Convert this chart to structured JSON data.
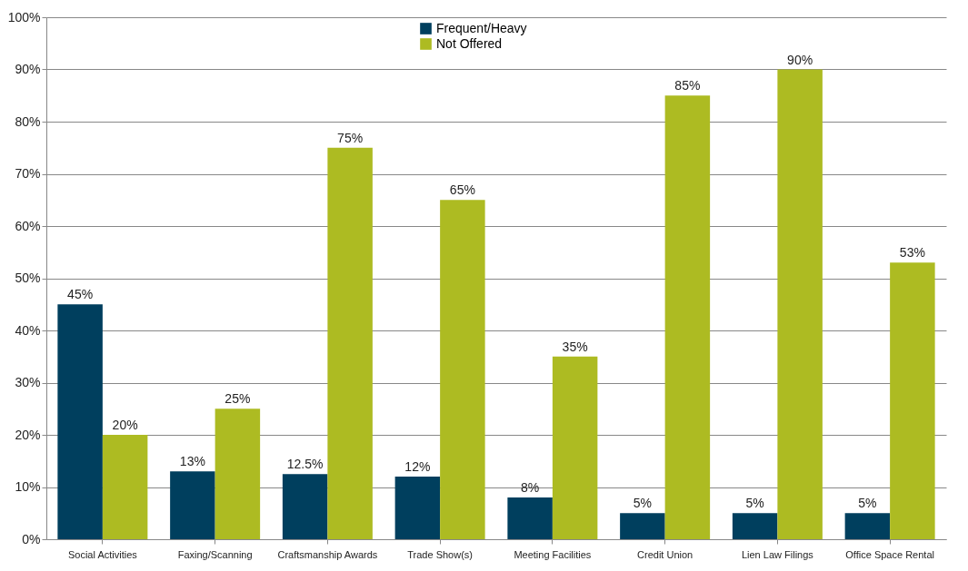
{
  "chart_data": {
    "type": "bar",
    "categories": [
      "Social Activities",
      "Faxing/Scanning",
      "Craftsmanship Awards",
      "Trade Show(s)",
      "Meeting Facilities",
      "Credit Union",
      "Lien Law Filings",
      "Office Space Rental"
    ],
    "series": [
      {
        "name": "Frequent/Heavy",
        "color": "#003f5e",
        "values": [
          45,
          13,
          12.5,
          12,
          8,
          5,
          5,
          5
        ],
        "value_labels": [
          "45%",
          "13%",
          "12.5%",
          "12%",
          "8%",
          "5%",
          "5%",
          "5%"
        ]
      },
      {
        "name": "Not Offered",
        "color": "#adbb22",
        "values": [
          20,
          25,
          75,
          65,
          35,
          85,
          90,
          53
        ],
        "value_labels": [
          "20%",
          "25%",
          "75%",
          "65%",
          "35%",
          "85%",
          "90%",
          "53%"
        ]
      }
    ],
    "ylim": [
      0,
      100
    ],
    "yticks": [
      {
        "value": 0,
        "label": "0%"
      },
      {
        "value": 10,
        "label": "10%"
      },
      {
        "value": 20,
        "label": "20%"
      },
      {
        "value": 30,
        "label": "30%"
      },
      {
        "value": 40,
        "label": "40%"
      },
      {
        "value": 50,
        "label": "50%"
      },
      {
        "value": 60,
        "label": "60%"
      },
      {
        "value": 70,
        "label": "70%"
      },
      {
        "value": 80,
        "label": "80%"
      },
      {
        "value": 90,
        "label": "90%"
      },
      {
        "value": 100,
        "label": "100%"
      }
    ],
    "grid": "y",
    "legend": "top"
  }
}
